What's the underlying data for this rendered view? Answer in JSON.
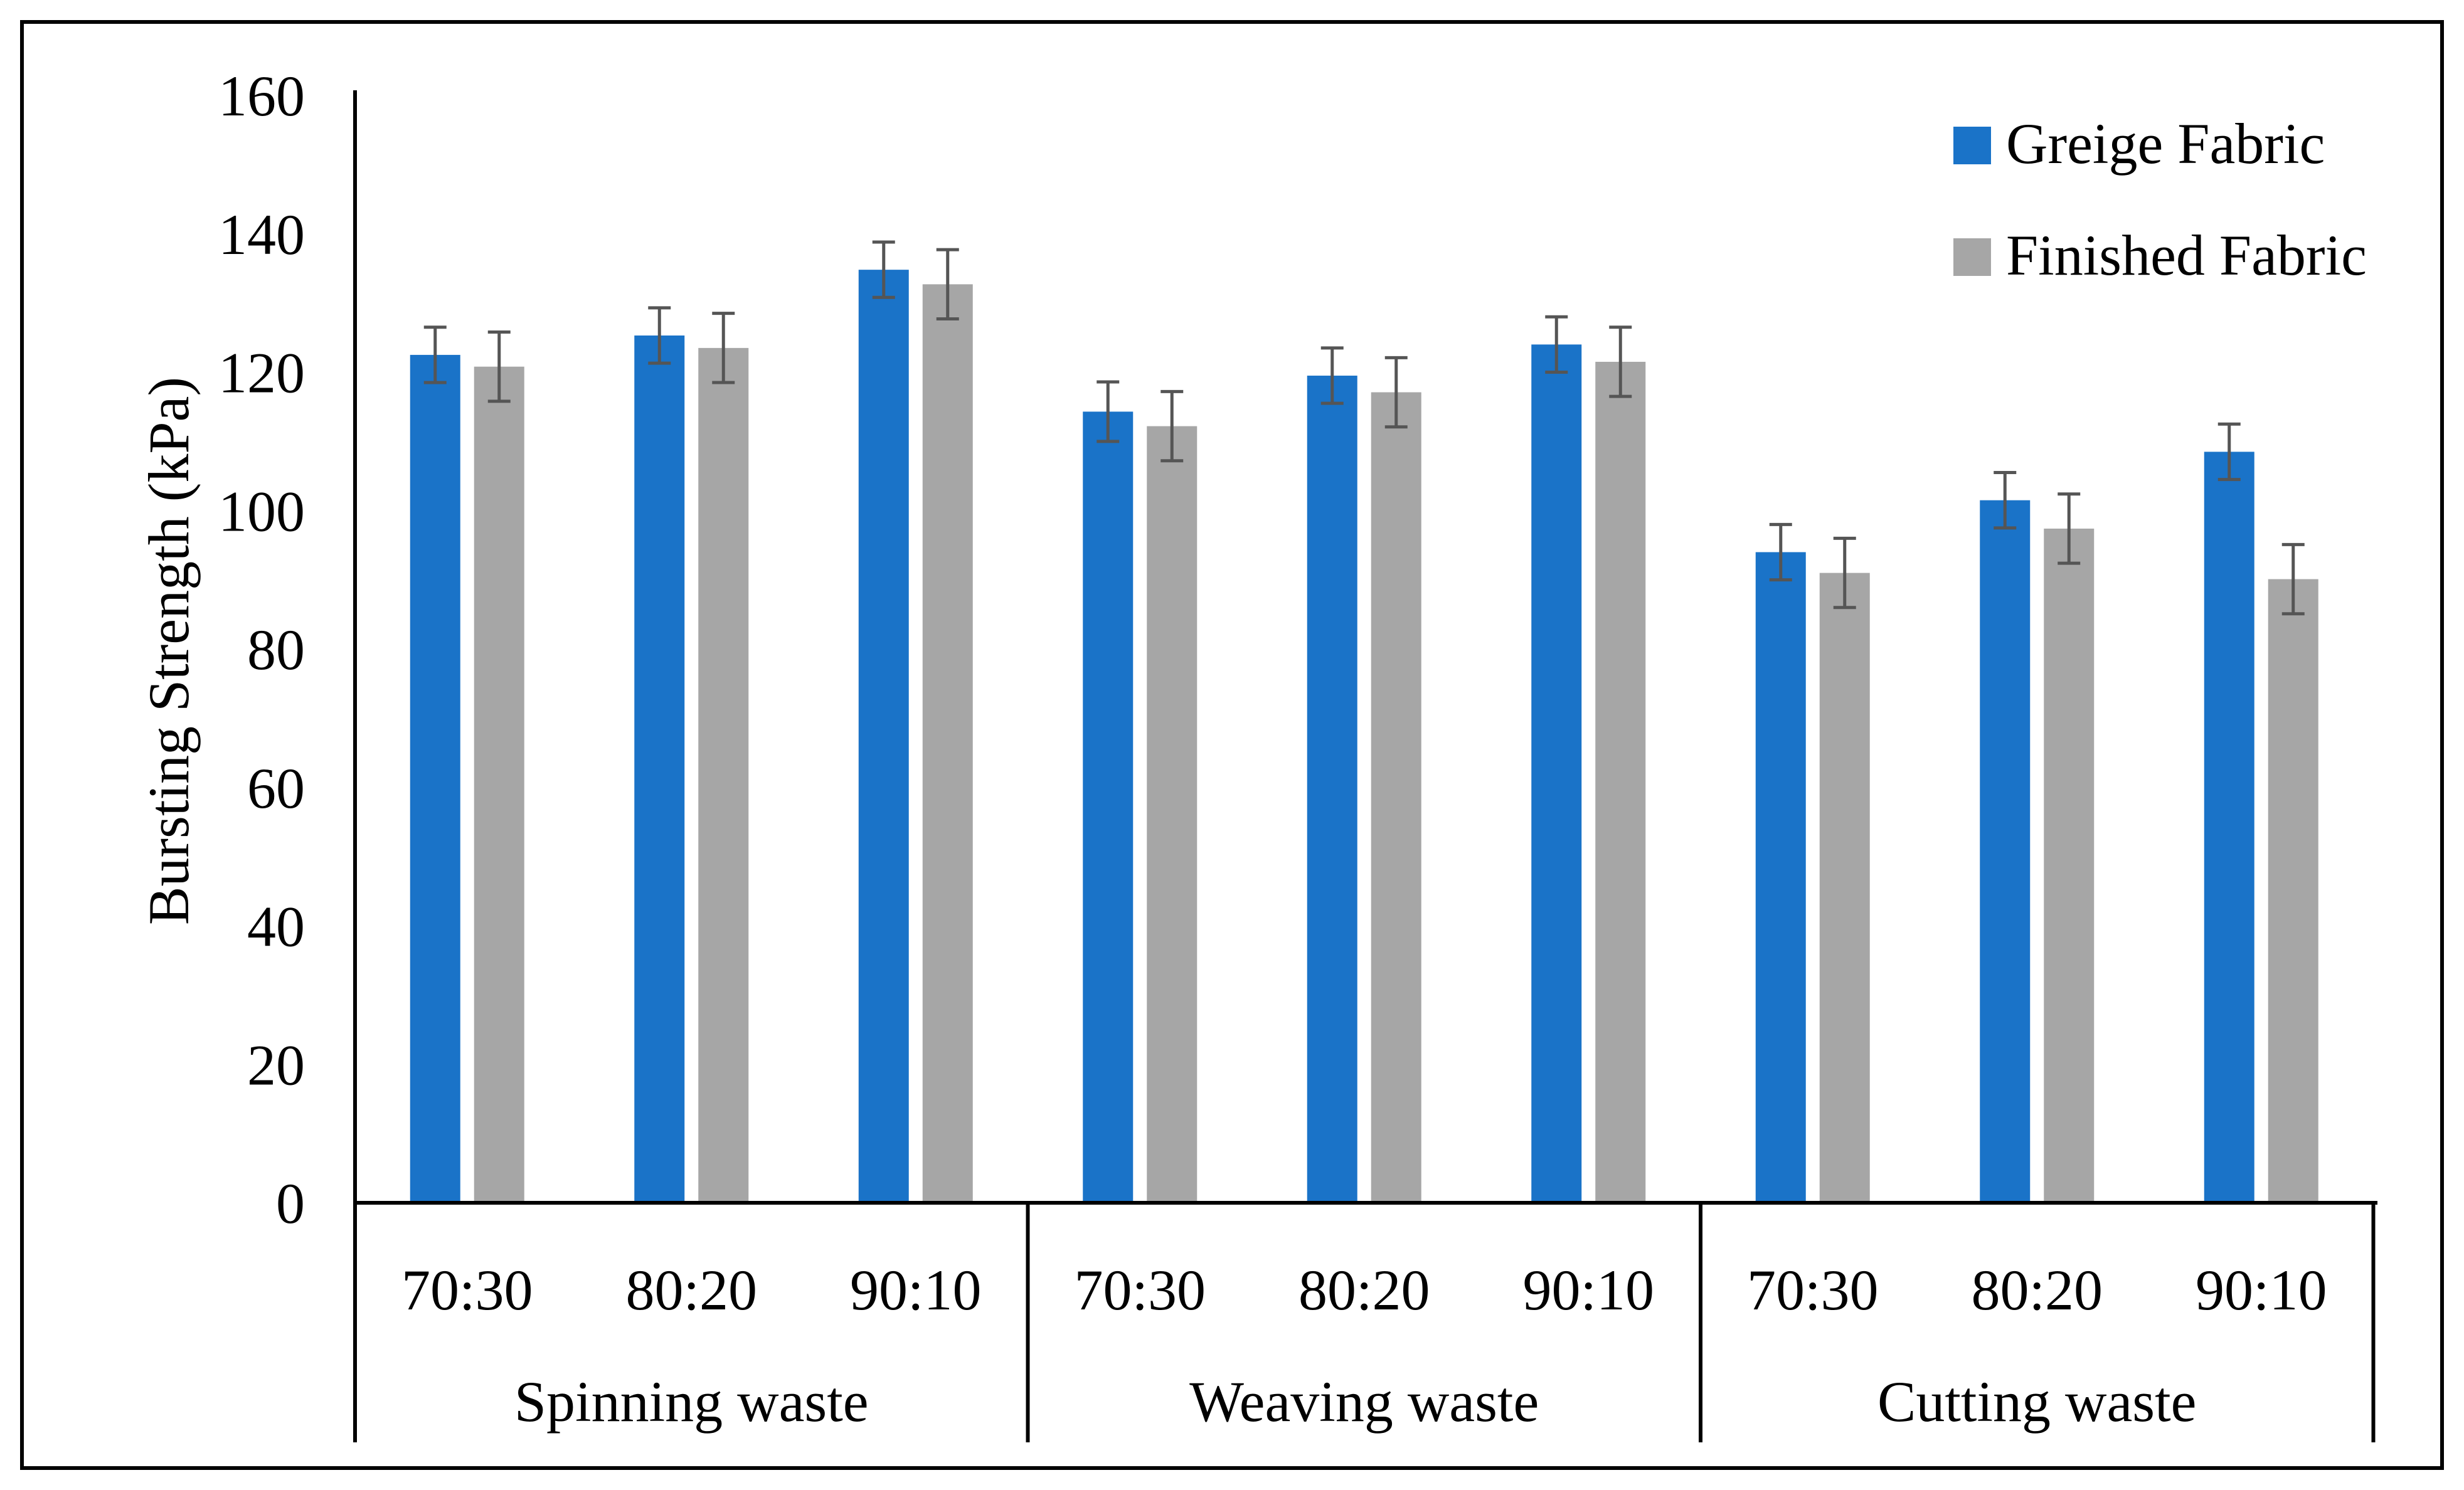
{
  "chart_data": {
    "type": "bar",
    "title": "",
    "ylabel": "Bursting Strength (kPa)",
    "xlabel": "",
    "ylim": [
      0,
      160
    ],
    "yticks": [
      0,
      20,
      40,
      60,
      80,
      100,
      120,
      140,
      160
    ],
    "grid": false,
    "legend_position": "top-right",
    "groups": [
      {
        "label": "Spinning waste",
        "categories": [
          "70:30",
          "80:20",
          "90:10"
        ]
      },
      {
        "label": "Weaving waste",
        "categories": [
          "70:30",
          "80:20",
          "90:10"
        ]
      },
      {
        "label": "Cutting waste",
        "categories": [
          "70:30",
          "80:20",
          "90:10"
        ]
      }
    ],
    "series": [
      {
        "name": "Greige Fabric",
        "color": "#1a73c8",
        "values": [
          122.5,
          125.3,
          134.8,
          114.3,
          119.5,
          124.0,
          94.0,
          101.5,
          108.5
        ],
        "errors": [
          4.0,
          4.0,
          4.0,
          4.3,
          4.0,
          4.0,
          4.0,
          4.0,
          4.0
        ]
      },
      {
        "name": "Finished Fabric",
        "color": "#a6a6a6",
        "values": [
          120.8,
          123.5,
          132.7,
          112.2,
          117.1,
          121.5,
          91.0,
          97.4,
          90.1
        ],
        "errors": [
          5.0,
          5.0,
          5.0,
          5.0,
          5.0,
          5.0,
          5.0,
          5.0,
          5.0
        ]
      }
    ],
    "error_bar_color": "#555555"
  }
}
